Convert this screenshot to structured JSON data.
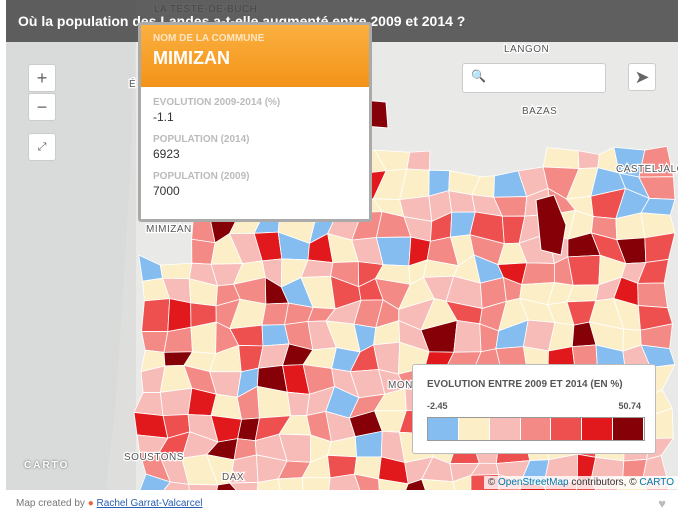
{
  "header": {
    "title": "Où la population des Landes a-t-elle augmenté entre 2009 et 2014 ?"
  },
  "map": {
    "place_labels": [
      "LA TESTE-DE-BUCH",
      "LANGON",
      "BAZAS",
      "CASTELJALO",
      "MIMIZAN",
      "SOUSTONS",
      "DAX",
      "MON",
      "É"
    ],
    "zoom_in": "+",
    "zoom_out": "−",
    "logo": "CARTO",
    "attribution": {
      "prefix": "©",
      "osm": "OpenStreetMap",
      "middle": "contributors, ©",
      "carto": "CARTO"
    }
  },
  "popup": {
    "name_label": "NOM DE LA COMMUNE",
    "name": "MIMIZAN",
    "fields": [
      {
        "label": "EVOLUTION 2009-2014 (%)",
        "value": -1.1
      },
      {
        "label": "POPULATION (2014)",
        "value": 6923
      },
      {
        "label": "POPULATION (2009)",
        "value": 7000
      }
    ]
  },
  "legend": {
    "title": "EVOLUTION ENTRE 2009 ET 2014 (EN %)",
    "min": -2.45,
    "max": 50.74,
    "colors": [
      "#86bdf0",
      "#fcefc7",
      "#f8bcb8",
      "#f48a86",
      "#ee5050",
      "#e2191c",
      "#860008"
    ]
  },
  "footer": {
    "prefix": "Map created by",
    "author": "Rachel Garrat-Valcarcel"
  }
}
